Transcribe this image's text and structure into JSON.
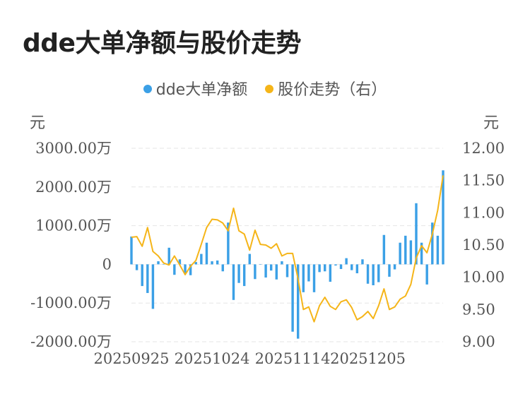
{
  "title": "dde大单净额与股价走势",
  "colors": {
    "bar": "#3ba0e6",
    "line": "#f5b519",
    "grid": "#e6e6e6"
  },
  "chart_data": {
    "type": "bar+line",
    "left_unit": "元",
    "right_unit": "元",
    "legend_placement": "top-center",
    "grid": true,
    "left_ticks": [
      "3000.00万",
      "2000.00万",
      "1000.00万",
      "0",
      "-1000.00万",
      "-2000.00万"
    ],
    "right_ticks": [
      "12.00",
      "11.50",
      "11.00",
      "10.50",
      "10.00",
      "9.50",
      "9.00"
    ],
    "ylim_left": [
      -2000,
      3000
    ],
    "ylim_right": [
      9.0,
      12.0
    ],
    "x_tick_labels": [
      "20250925",
      "20251024",
      "20251114",
      "20251205"
    ],
    "x_tick_label_indices": [
      0,
      15,
      30,
      44
    ],
    "series": [
      {
        "name": "dde大单净额",
        "axis": "left",
        "type": "bar",
        "unit": "万",
        "values": [
          720,
          -150,
          -560,
          -740,
          -1150,
          80,
          0,
          430,
          -270,
          130,
          -230,
          -280,
          60,
          270,
          560,
          80,
          100,
          -180,
          1080,
          -920,
          -480,
          -560,
          270,
          -380,
          0,
          -340,
          -160,
          -390,
          80,
          -330,
          -1740,
          -1920,
          -720,
          -440,
          -720,
          -200,
          -180,
          -450,
          -30,
          -120,
          160,
          -150,
          -230,
          130,
          -500,
          -540,
          -460,
          760,
          -320,
          -130,
          560,
          740,
          620,
          1580,
          560,
          -520,
          1080,
          740,
          2430
        ]
      },
      {
        "name": "股价走势（右）",
        "axis": "right",
        "type": "line",
        "values": [
          10.62,
          10.63,
          10.48,
          10.77,
          10.4,
          10.33,
          10.22,
          10.19,
          10.33,
          10.19,
          10.04,
          10.17,
          10.26,
          10.51,
          10.77,
          10.9,
          10.89,
          10.84,
          10.72,
          11.07,
          10.72,
          10.67,
          10.42,
          10.73,
          10.51,
          10.5,
          10.45,
          10.52,
          10.33,
          10.37,
          10.37,
          9.98,
          9.5,
          9.54,
          9.31,
          9.56,
          9.69,
          9.55,
          9.5,
          9.62,
          9.65,
          9.53,
          9.34,
          9.39,
          9.47,
          9.36,
          9.56,
          9.82,
          9.5,
          9.54,
          9.66,
          9.71,
          9.89,
          10.3,
          10.49,
          10.38,
          10.67,
          11.04,
          11.58
        ]
      }
    ]
  }
}
